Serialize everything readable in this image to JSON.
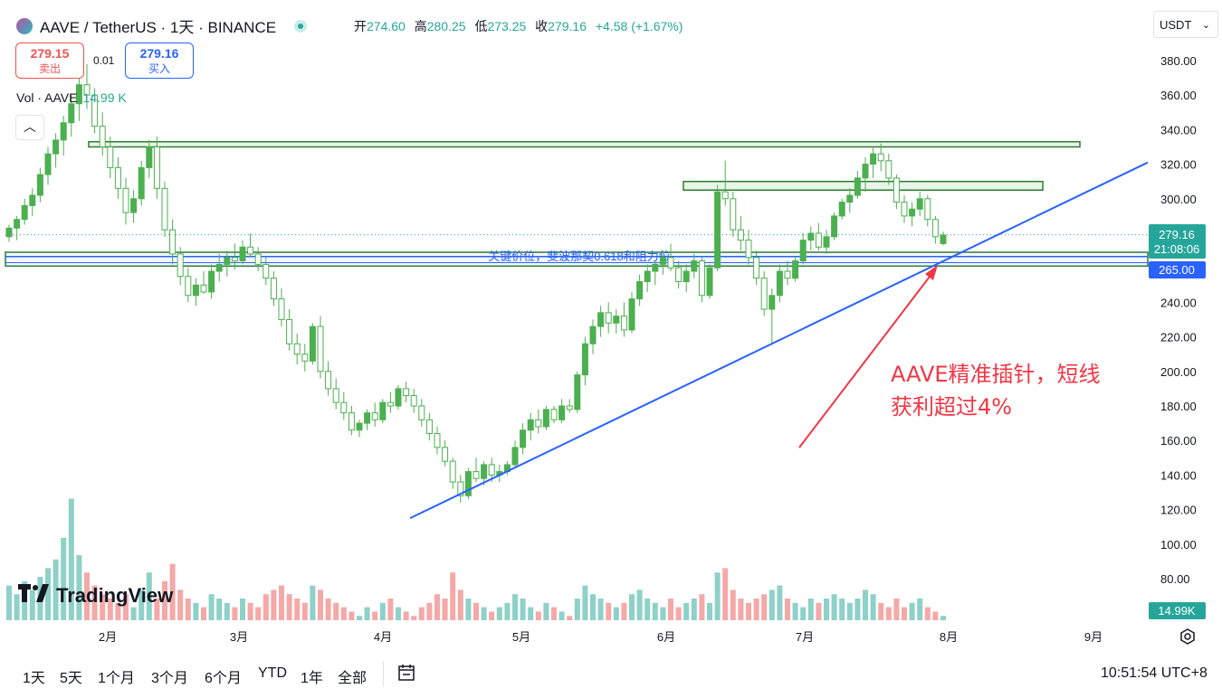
{
  "header": {
    "symbol_title": "AAVE / TetherUS · 1天 · BINANCE",
    "ohlc": {
      "open_label": "开",
      "open": "274.60",
      "high_label": "高",
      "high": "280.25",
      "low_label": "低",
      "low": "273.25",
      "close_label": "收",
      "close": "279.16",
      "change": "+4.58 (+1.67%)"
    },
    "currency": "USDT",
    "sell": {
      "price": "279.15",
      "label": "卖出"
    },
    "buy": {
      "price": "279.16",
      "label": "买入"
    },
    "spread": "0.01"
  },
  "volume_label": {
    "name": "Vol · AAVE",
    "value": "14.99 K"
  },
  "logo_text": "TradingView",
  "icons": {
    "collapse": "chevron-up-icon",
    "settings": "settings-icon",
    "date_range": "calendar-range-icon",
    "logo": "tradingview-logo-icon"
  },
  "colors": {
    "up": "#26a69a",
    "down": "#ef5350",
    "candle_up": "#4caf50",
    "zone": "#2e7d32",
    "trendline": "#2962ff",
    "annotation": "#f23645"
  },
  "footer": {
    "timeframes": [
      "1天",
      "5天",
      "1个月",
      "3个月",
      "6个月",
      "YTD",
      "1年",
      "全部"
    ],
    "clock": "10:51:54 UTC+8"
  },
  "chart_data": {
    "type": "candlestick",
    "symbol": "AAVEUSDT",
    "interval": "1D",
    "y_axis": {
      "ticks": [
        "380.00",
        "360.00",
        "340.00",
        "320.00",
        "300.00",
        "280.00",
        "260.00",
        "240.00",
        "220.00",
        "200.00",
        "180.00",
        "160.00",
        "140.00",
        "120.00",
        "100.00",
        "80.00"
      ],
      "range": [
        67,
        386
      ]
    },
    "x_axis": {
      "ticks": [
        "2月",
        "3月",
        "4月",
        "5月",
        "6月",
        "7月",
        "8月",
        "9月"
      ]
    },
    "price_labels": {
      "last": "279.16",
      "countdown": "21:08:06",
      "level": "265.00",
      "volume": "14.99K"
    },
    "resistance_zones": [
      {
        "low": 330,
        "high": 333,
        "x_from": "2月",
        "x_to": "8月"
      },
      {
        "low": 305,
        "high": 310,
        "x_from": "6月",
        "x_to": "8月"
      }
    ],
    "support_band": {
      "low": 261,
      "high": 269,
      "label": "关键价位，斐波那契0.618和阻力位"
    },
    "trendline": {
      "from": {
        "date": "4月",
        "price": 115
      },
      "to": {
        "date": "8月",
        "price": 321
      }
    },
    "annotation": "AAVE精准插针，短线获利超过4%",
    "candles": [
      [
        278,
        285,
        275,
        283
      ],
      [
        283,
        290,
        276,
        288
      ],
      [
        288,
        300,
        285,
        296
      ],
      [
        296,
        306,
        290,
        302
      ],
      [
        302,
        318,
        298,
        314
      ],
      [
        314,
        330,
        308,
        326
      ],
      [
        326,
        338,
        318,
        334
      ],
      [
        334,
        348,
        325,
        344
      ],
      [
        344,
        360,
        336,
        355
      ],
      [
        355,
        372,
        345,
        366
      ],
      [
        366,
        378,
        352,
        360
      ],
      [
        360,
        364,
        338,
        342
      ],
      [
        342,
        350,
        325,
        330
      ],
      [
        330,
        336,
        312,
        318
      ],
      [
        318,
        324,
        300,
        306
      ],
      [
        306,
        312,
        285,
        292
      ],
      [
        292,
        305,
        286,
        300
      ],
      [
        300,
        322,
        296,
        318
      ],
      [
        318,
        334,
        312,
        330
      ],
      [
        330,
        336,
        300,
        306
      ],
      [
        306,
        310,
        278,
        282
      ],
      [
        282,
        288,
        262,
        268
      ],
      [
        268,
        272,
        250,
        255
      ],
      [
        255,
        260,
        240,
        244
      ],
      [
        244,
        254,
        238,
        250
      ],
      [
        250,
        258,
        245,
        246
      ],
      [
        246,
        262,
        242,
        258
      ],
      [
        258,
        268,
        252,
        262
      ],
      [
        262,
        270,
        255,
        266
      ],
      [
        266,
        274,
        259,
        264
      ],
      [
        264,
        276,
        262,
        272
      ],
      [
        272,
        280,
        266,
        268
      ],
      [
        268,
        272,
        258,
        262
      ],
      [
        262,
        266,
        250,
        254
      ],
      [
        254,
        258,
        238,
        242
      ],
      [
        242,
        248,
        226,
        230
      ],
      [
        230,
        236,
        212,
        216
      ],
      [
        216,
        222,
        204,
        210
      ],
      [
        210,
        216,
        200,
        206
      ],
      [
        206,
        228,
        204,
        226
      ],
      [
        226,
        232,
        196,
        200
      ],
      [
        200,
        206,
        186,
        190
      ],
      [
        190,
        196,
        178,
        182
      ],
      [
        182,
        188,
        172,
        176
      ],
      [
        176,
        180,
        163,
        166
      ],
      [
        166,
        172,
        162,
        170
      ],
      [
        170,
        178,
        166,
        176
      ],
      [
        176,
        182,
        168,
        172
      ],
      [
        172,
        184,
        170,
        182
      ],
      [
        182,
        188,
        176,
        180
      ],
      [
        180,
        192,
        178,
        190
      ],
      [
        190,
        194,
        182,
        186
      ],
      [
        186,
        190,
        176,
        180
      ],
      [
        180,
        184,
        168,
        172
      ],
      [
        172,
        176,
        160,
        164
      ],
      [
        164,
        168,
        152,
        156
      ],
      [
        156,
        160,
        145,
        148
      ],
      [
        148,
        150,
        132,
        136
      ],
      [
        136,
        140,
        124,
        128
      ],
      [
        128,
        144,
        126,
        142
      ],
      [
        142,
        150,
        136,
        138
      ],
      [
        138,
        148,
        134,
        146
      ],
      [
        146,
        150,
        136,
        140
      ],
      [
        140,
        146,
        136,
        142
      ],
      [
        142,
        148,
        140,
        146
      ],
      [
        146,
        160,
        144,
        156
      ],
      [
        156,
        170,
        152,
        166
      ],
      [
        166,
        176,
        160,
        172
      ],
      [
        172,
        178,
        164,
        168
      ],
      [
        168,
        180,
        166,
        178
      ],
      [
        178,
        180,
        170,
        172
      ],
      [
        172,
        184,
        170,
        180
      ],
      [
        180,
        184,
        176,
        178
      ],
      [
        178,
        200,
        176,
        198
      ],
      [
        198,
        220,
        192,
        216
      ],
      [
        216,
        230,
        210,
        226
      ],
      [
        226,
        238,
        220,
        234
      ],
      [
        234,
        240,
        222,
        228
      ],
      [
        228,
        236,
        222,
        232
      ],
      [
        232,
        240,
        220,
        224
      ],
      [
        224,
        246,
        222,
        242
      ],
      [
        242,
        256,
        238,
        252
      ],
      [
        252,
        262,
        246,
        258
      ],
      [
        258,
        264,
        250,
        262
      ],
      [
        262,
        270,
        256,
        266
      ],
      [
        266,
        274,
        258,
        260
      ],
      [
        260,
        264,
        248,
        252
      ],
      [
        252,
        262,
        246,
        258
      ],
      [
        258,
        268,
        254,
        264
      ],
      [
        264,
        266,
        240,
        244
      ],
      [
        244,
        262,
        242,
        260
      ],
      [
        260,
        308,
        258,
        304
      ],
      [
        304,
        322,
        296,
        300
      ],
      [
        300,
        304,
        278,
        282
      ],
      [
        282,
        290,
        270,
        276
      ],
      [
        276,
        282,
        262,
        266
      ],
      [
        266,
        270,
        250,
        254
      ],
      [
        254,
        258,
        232,
        236
      ],
      [
        236,
        248,
        216,
        244
      ],
      [
        244,
        262,
        240,
        258
      ],
      [
        258,
        264,
        250,
        254
      ],
      [
        254,
        266,
        252,
        264
      ],
      [
        264,
        280,
        262,
        276
      ],
      [
        276,
        284,
        270,
        280
      ],
      [
        280,
        286,
        270,
        272
      ],
      [
        272,
        282,
        268,
        278
      ],
      [
        278,
        292,
        276,
        290
      ],
      [
        290,
        300,
        288,
        298
      ],
      [
        298,
        306,
        292,
        302
      ],
      [
        302,
        316,
        300,
        312
      ],
      [
        312,
        324,
        304,
        320
      ],
      [
        320,
        330,
        312,
        326
      ],
      [
        326,
        332,
        316,
        322
      ],
      [
        322,
        326,
        308,
        312
      ],
      [
        312,
        314,
        294,
        298
      ],
      [
        298,
        302,
        286,
        290
      ],
      [
        290,
        298,
        284,
        294
      ],
      [
        294,
        304,
        290,
        300
      ],
      [
        300,
        302,
        284,
        288
      ],
      [
        288,
        290,
        274,
        278
      ],
      [
        274,
        281,
        273,
        279
      ]
    ],
    "volumes": [
      90,
      86,
      92,
      88,
      94,
      98,
      102,
      112,
      130,
      104,
      96,
      90,
      86,
      84,
      82,
      86,
      80,
      88,
      96,
      84,
      92,
      100,
      88,
      84,
      82,
      80,
      86,
      84,
      82,
      80,
      84,
      82,
      80,
      86,
      88,
      90,
      86,
      84,
      82,
      90,
      88,
      84,
      82,
      80,
      78,
      76,
      80,
      78,
      82,
      84,
      80,
      78,
      76,
      80,
      82,
      86,
      84,
      96,
      88,
      84,
      82,
      80,
      78,
      80,
      82,
      86,
      84,
      80,
      78,
      82,
      80,
      78,
      76,
      84,
      90,
      86,
      84,
      82,
      80,
      82,
      86,
      88,
      84,
      82,
      80,
      84,
      80,
      82,
      84,
      86,
      82,
      96,
      98,
      88,
      84,
      82,
      84,
      86,
      88,
      90,
      84,
      82,
      80,
      84,
      82,
      84,
      86,
      84,
      82,
      84,
      88,
      86,
      82,
      80,
      84,
      80,
      82,
      84,
      80,
      78,
      76
    ]
  }
}
